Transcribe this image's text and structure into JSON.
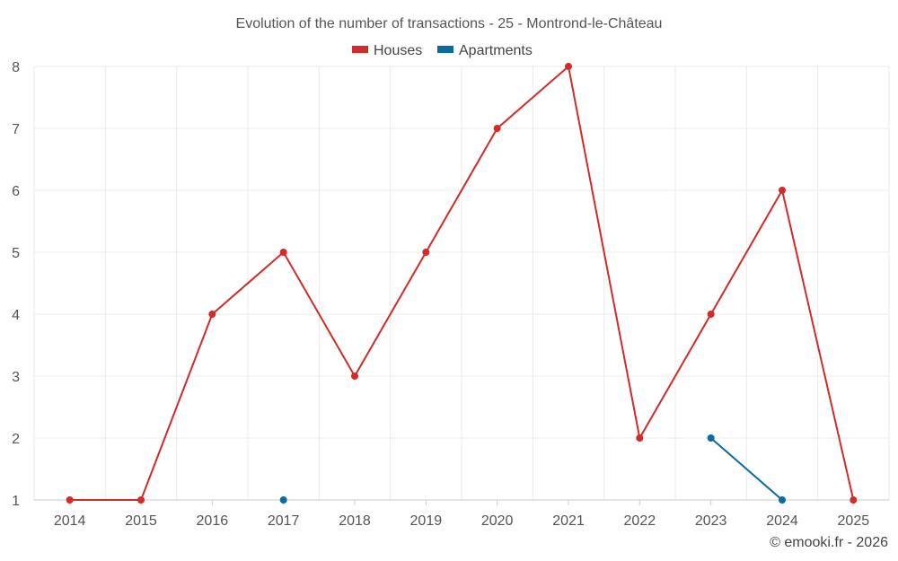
{
  "chart_data": {
    "type": "line",
    "title": "Evolution of the number of transactions - 25 - Montrond-le-Château",
    "categories": [
      "2014",
      "2015",
      "2016",
      "2017",
      "2018",
      "2019",
      "2020",
      "2021",
      "2022",
      "2023",
      "2024",
      "2025"
    ],
    "ylim": [
      1,
      8
    ],
    "yticks": [
      1,
      2,
      3,
      4,
      5,
      6,
      7,
      8
    ],
    "grid": true,
    "legend_position": "top-center",
    "series": [
      {
        "name": "Houses",
        "color": "#d32a2a",
        "values": [
          1,
          1,
          4,
          5,
          3,
          5,
          7,
          8,
          2,
          4,
          6,
          1
        ]
      },
      {
        "name": "Apartments",
        "color": "#0a6b9e",
        "values": [
          null,
          null,
          null,
          1,
          null,
          null,
          null,
          null,
          null,
          2,
          1,
          null
        ]
      }
    ],
    "xlabel": "",
    "ylabel": ""
  },
  "credit": "© emooki.fr - 2026"
}
